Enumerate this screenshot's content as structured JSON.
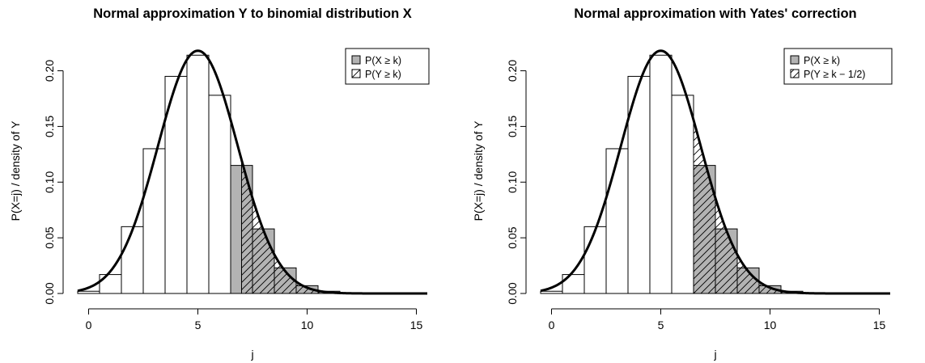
{
  "chart_data": [
    {
      "type": "bar",
      "title": "Normal approximation Y to binomial distribution X",
      "xlabel": "j",
      "ylabel": "P(X=j) / density of Y",
      "xlim": [
        -0.5,
        15.5
      ],
      "ylim": [
        0,
        0.22
      ],
      "xticks": [
        "0",
        "5",
        "10",
        "15"
      ],
      "yticks": [
        "0.00",
        "0.05",
        "0.10",
        "0.15",
        "0.20"
      ],
      "grid": false,
      "legend_position": "top-right",
      "k": 7,
      "shade_from": 7,
      "categories": [
        "0",
        "1",
        "2",
        "3",
        "4",
        "5",
        "6",
        "7",
        "8",
        "9",
        "10",
        "11",
        "12",
        "13",
        "14",
        "15"
      ],
      "series": [
        {
          "name": "P(X ≥ k)",
          "kind": "binomial-pmf",
          "values": [
            0.002,
            0.017,
            0.06,
            0.13,
            0.195,
            0.214,
            0.178,
            0.115,
            0.058,
            0.023,
            0.007,
            0.002,
            0.0004,
            0.0001,
            0.0,
            0.0
          ]
        },
        {
          "name": "P(Y ≥ k)",
          "kind": "normal-density",
          "mean": 5.0,
          "sd": 1.83
        }
      ]
    },
    {
      "type": "bar",
      "title": "Normal approximation with Yates' correction",
      "xlabel": "j",
      "ylabel": "P(X=j) / density of Y",
      "xlim": [
        -0.5,
        15.5
      ],
      "ylim": [
        0,
        0.22
      ],
      "xticks": [
        "0",
        "5",
        "10",
        "15"
      ],
      "yticks": [
        "0.00",
        "0.05",
        "0.10",
        "0.15",
        "0.20"
      ],
      "grid": false,
      "legend_position": "top-right",
      "k": 7,
      "shade_from": 6.5,
      "categories": [
        "0",
        "1",
        "2",
        "3",
        "4",
        "5",
        "6",
        "7",
        "8",
        "9",
        "10",
        "11",
        "12",
        "13",
        "14",
        "15"
      ],
      "series": [
        {
          "name": "P(X ≥ k)",
          "kind": "binomial-pmf",
          "values": [
            0.002,
            0.017,
            0.06,
            0.13,
            0.195,
            0.214,
            0.178,
            0.115,
            0.058,
            0.023,
            0.007,
            0.002,
            0.0004,
            0.0001,
            0.0,
            0.0
          ]
        },
        {
          "name": "P(Y ≥ k − 1/2)",
          "kind": "normal-density",
          "mean": 5.0,
          "sd": 1.83
        }
      ]
    }
  ]
}
